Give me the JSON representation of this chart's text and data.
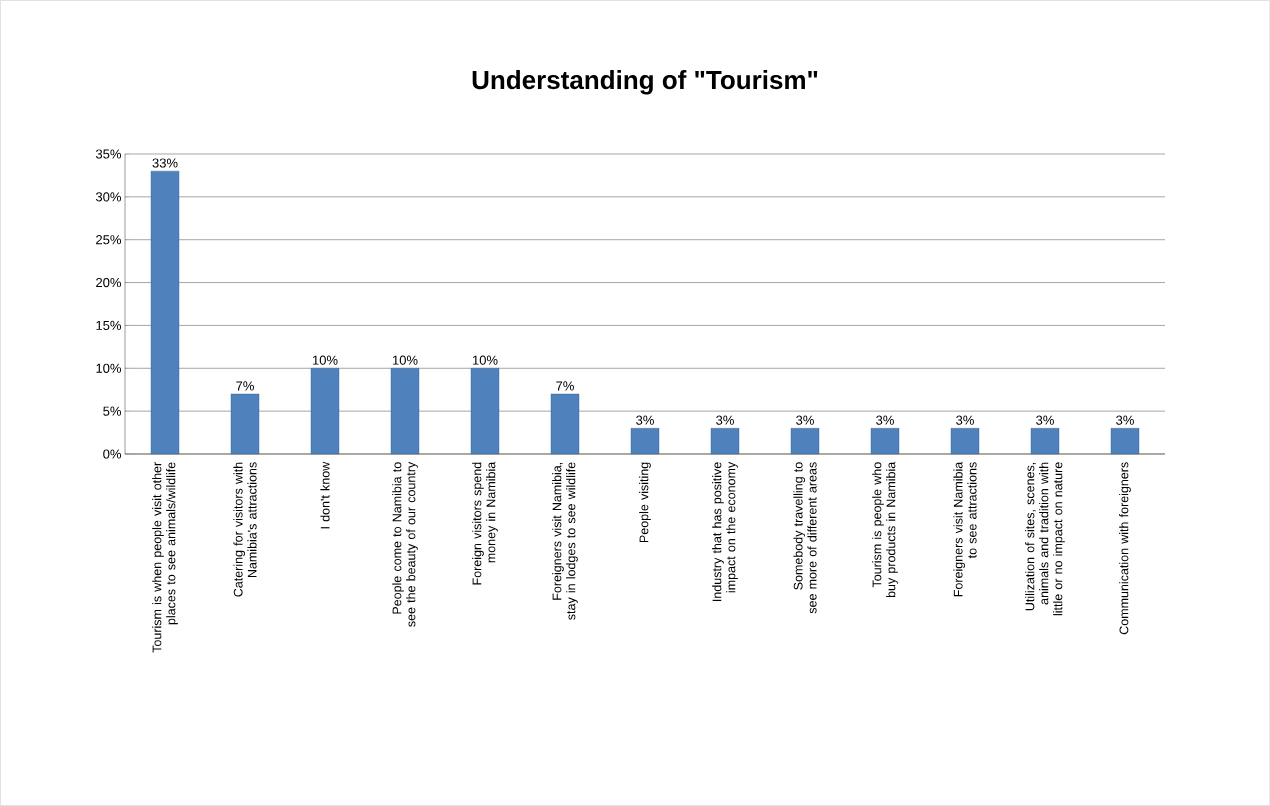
{
  "chart_data": {
    "type": "bar",
    "title": "Understanding of \"Tourism\"",
    "categories": [
      "Tourism is when people visit other places to see animals/wildlife",
      "Catering for visitors with Namibia's attractions",
      "I don't know",
      "People come to Namibia to see the beauty of our country",
      "Foreign visitors spend money in Namibia",
      "Foreigners visit Namibia, stay in lodges to see wildlife",
      "People visiting",
      "Industry that has positive impact on the economy",
      "Somebody travelling to see more of different areas",
      "Tourism is people who buy products in Namibia",
      "Foreigners visit Namibia to see attractions",
      "Utilization of sites, scenes, animals and tradition with little or no impact on nature",
      "Communication with foreigners"
    ],
    "values": [
      33,
      7,
      10,
      10,
      10,
      7,
      3,
      3,
      3,
      3,
      3,
      3,
      3
    ],
    "value_labels": [
      "33%",
      "7%",
      "10%",
      "10%",
      "10%",
      "7%",
      "3%",
      "3%",
      "3%",
      "3%",
      "3%",
      "3%",
      "3%"
    ],
    "color": "#4f81bd",
    "ylim": [
      0,
      35
    ],
    "yticks": [
      {
        "value": 0,
        "label": "0%"
      },
      {
        "value": 5,
        "label": "5%"
      },
      {
        "value": 10,
        "label": "10%"
      },
      {
        "value": 15,
        "label": "15%"
      },
      {
        "value": 20,
        "label": "20%"
      },
      {
        "value": 25,
        "label": "25%"
      },
      {
        "value": 30,
        "label": "30%"
      },
      {
        "value": 35,
        "label": "35%"
      }
    ],
    "grid": "y"
  }
}
